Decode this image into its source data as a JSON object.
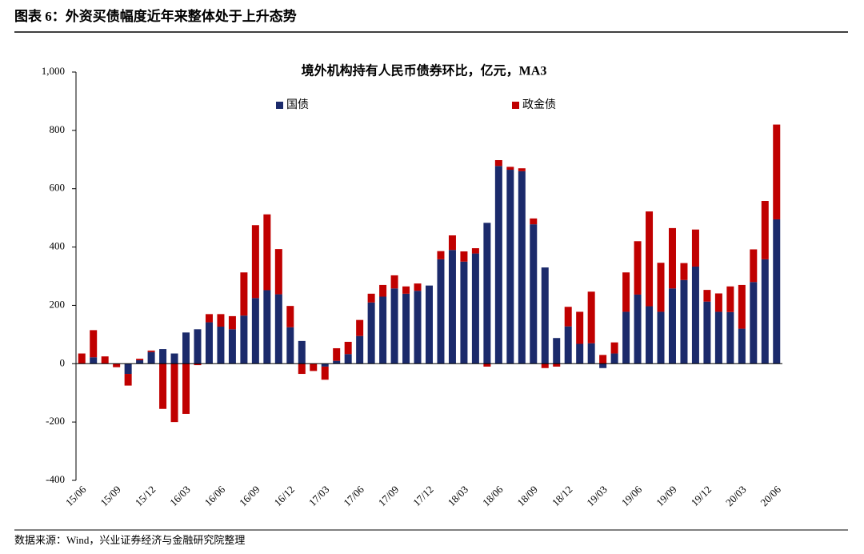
{
  "header": {
    "title": "图表 6：外资买债幅度近年来整体处于上升态势"
  },
  "chart_data": {
    "type": "bar",
    "stacked": true,
    "title": "境外机构持有人民币债券环比，亿元，MA3",
    "categories": [
      "15/06",
      null,
      null,
      "15/09",
      null,
      null,
      "15/12",
      null,
      null,
      "16/03",
      null,
      null,
      "16/06",
      null,
      null,
      "16/09",
      null,
      null,
      "16/12",
      null,
      null,
      "17/03",
      null,
      null,
      "17/06",
      null,
      null,
      "17/09",
      null,
      null,
      "17/12",
      null,
      null,
      "18/03",
      null,
      null,
      "18/06",
      null,
      null,
      "18/09",
      null,
      null,
      "18/12",
      null,
      null,
      "19/03",
      null,
      null,
      "19/06",
      null,
      null,
      "19/09",
      null,
      null,
      "19/12",
      null,
      null,
      "20/03",
      null,
      null,
      "20/06"
    ],
    "series": [
      {
        "name": "国债",
        "color": "#1b2a6b",
        "values": [
          0,
          22,
          0,
          0,
          -35,
          12,
          40,
          50,
          35,
          107,
          118,
          142,
          127,
          118,
          165,
          225,
          252,
          238,
          125,
          78,
          0,
          -10,
          10,
          33,
          95,
          210,
          230,
          258,
          240,
          250,
          268,
          358,
          390,
          350,
          378,
          483,
          678,
          665,
          660,
          478,
          330,
          88,
          128,
          68,
          70,
          -15,
          35,
          178,
          237,
          197,
          178,
          258,
          287,
          333,
          213,
          178,
          177,
          120,
          280,
          358,
          495
        ]
      },
      {
        "name": "政金债",
        "color": "#c00000",
        "values": [
          35,
          93,
          25,
          -12,
          -40,
          5,
          5,
          -155,
          -200,
          -172,
          -5,
          28,
          43,
          45,
          148,
          250,
          260,
          155,
          73,
          -35,
          -25,
          -45,
          43,
          42,
          55,
          30,
          40,
          45,
          25,
          25,
          0,
          28,
          50,
          35,
          18,
          -10,
          20,
          10,
          10,
          20,
          -15,
          -10,
          67,
          110,
          177,
          30,
          38,
          135,
          183,
          325,
          168,
          207,
          58,
          127,
          40,
          63,
          88,
          150,
          112,
          200,
          325
        ]
      }
    ],
    "ylim": [
      -400,
      1000
    ],
    "yticks": [
      -400,
      -200,
      0,
      200,
      400,
      600,
      800,
      {
        "value": 1000,
        "label": "1,000"
      }
    ]
  },
  "footer": {
    "source": "数据来源：Wind，兴业证券经济与金融研究院整理"
  }
}
